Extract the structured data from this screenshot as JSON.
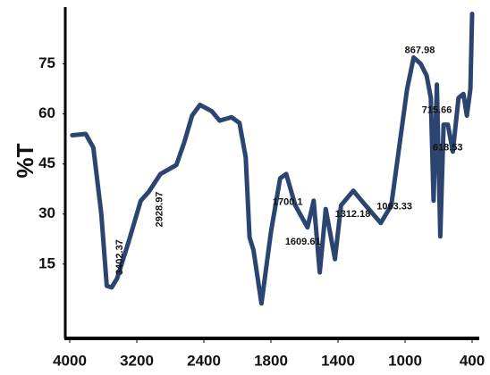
{
  "chart_data": {
    "type": "line",
    "y_label": "%T",
    "x": [
      3970,
      3810,
      3718,
      3624,
      3558,
      3500,
      3435,
      3294,
      3153,
      3059,
      2918,
      2729,
      2635,
      2541,
      2447,
      2329,
      2259,
      2153,
      2082,
      2026,
      1991,
      1956,
      1885,
      1800,
      1745,
      1709,
      1655,
      1582,
      1545,
      1509,
      1473,
      1418,
      1382,
      1309,
      1236,
      1145,
      1082,
      982,
      923,
      860,
      807,
      770,
      745,
      715,
      685,
      655,
      617,
      573,
      522,
      478,
      447,
      415,
      400
    ],
    "series": [
      {
        "name": "%T",
        "color": "#2b4570",
        "values": [
          53.6,
          54,
          49.9,
          30,
          8.5,
          8,
          10.7,
          22,
          34,
          36.6,
          42,
          44.7,
          51.4,
          59.5,
          62.7,
          60.8,
          58,
          59,
          57.3,
          47,
          23,
          19.2,
          3.2,
          24.6,
          40.7,
          42,
          32.6,
          26,
          34,
          12.5,
          31.5,
          16.5,
          32.6,
          37,
          32.6,
          27.3,
          32.6,
          67.5,
          76.9,
          75,
          71.5,
          64.8,
          34,
          68.8,
          23.3,
          56.8,
          56.8,
          48.7,
          64.8,
          66,
          59.5,
          67.5,
          90
        ]
      }
    ],
    "xlim": [
      4000,
      400
    ],
    "ylim": [
      -7,
      92
    ],
    "xticks": [
      4000,
      3200,
      2400,
      1800,
      1400,
      1000,
      400
    ],
    "yticks": [
      15,
      30,
      45,
      60,
      75
    ],
    "x_scale": "piecewise-by-ticks",
    "annotations": [
      {
        "value": 3402.37,
        "label": "3402.37",
        "rotate": true,
        "side": "above"
      },
      {
        "value": 2928.97,
        "label": "2928.97",
        "rotate": true,
        "side": "below"
      },
      {
        "value": 1700.1,
        "label": "1700.1",
        "rotate": false,
        "side": "below"
      },
      {
        "value": 1609.61,
        "label": "1609.61",
        "rotate": false,
        "side": "below"
      },
      {
        "value": 1312.18,
        "label": "1312.18",
        "rotate": false,
        "side": "below"
      },
      {
        "value": 1063.33,
        "label": "1063.33",
        "rotate": false,
        "side": "below"
      },
      {
        "value": 867.98,
        "label": "867.98",
        "rotate": false,
        "side": "above"
      },
      {
        "value": 715.66,
        "label": "715.66",
        "rotate": false,
        "side": "below"
      },
      {
        "value": 618.53,
        "label": "618.53",
        "rotate": false,
        "side": "below"
      }
    ]
  }
}
